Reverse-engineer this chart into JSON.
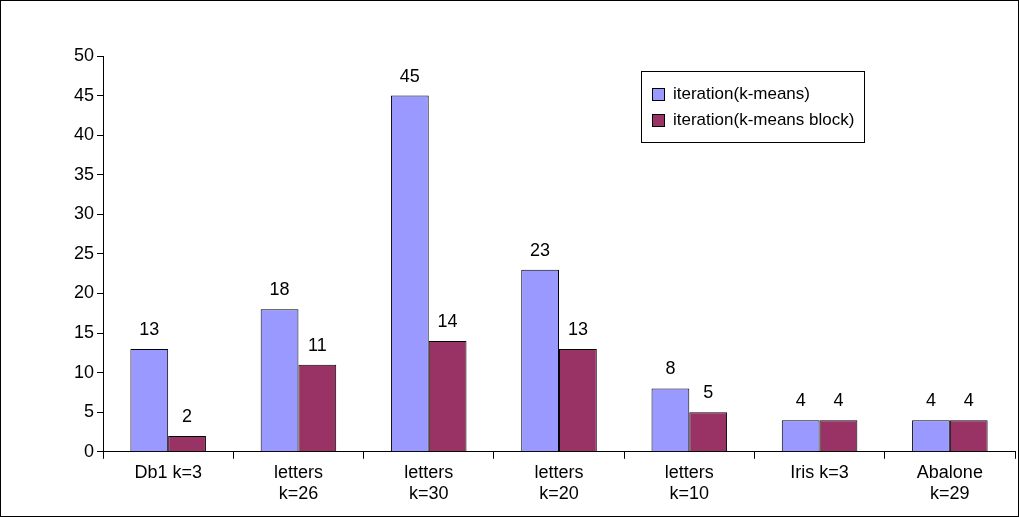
{
  "chart_data": {
    "type": "bar",
    "categories": [
      "Db1 k=3",
      "letters k=26",
      "letters k=30",
      "letters k=20",
      "letters k=10",
      "Iris k=3",
      "Abalone k=29"
    ],
    "series": [
      {
        "name": "iteration(k-means)",
        "color": "#9999ff",
        "values": [
          13,
          18,
          45,
          23,
          8,
          4,
          4
        ]
      },
      {
        "name": "iteration(k-means block)",
        "color": "#993366",
        "values": [
          2,
          11,
          14,
          13,
          5,
          4,
          4
        ]
      }
    ],
    "ylim": [
      0,
      50
    ],
    "yticks": [
      0,
      5,
      10,
      15,
      20,
      25,
      30,
      35,
      40,
      45,
      50
    ],
    "grid": false,
    "legend": "top right",
    "data_labels": true
  }
}
